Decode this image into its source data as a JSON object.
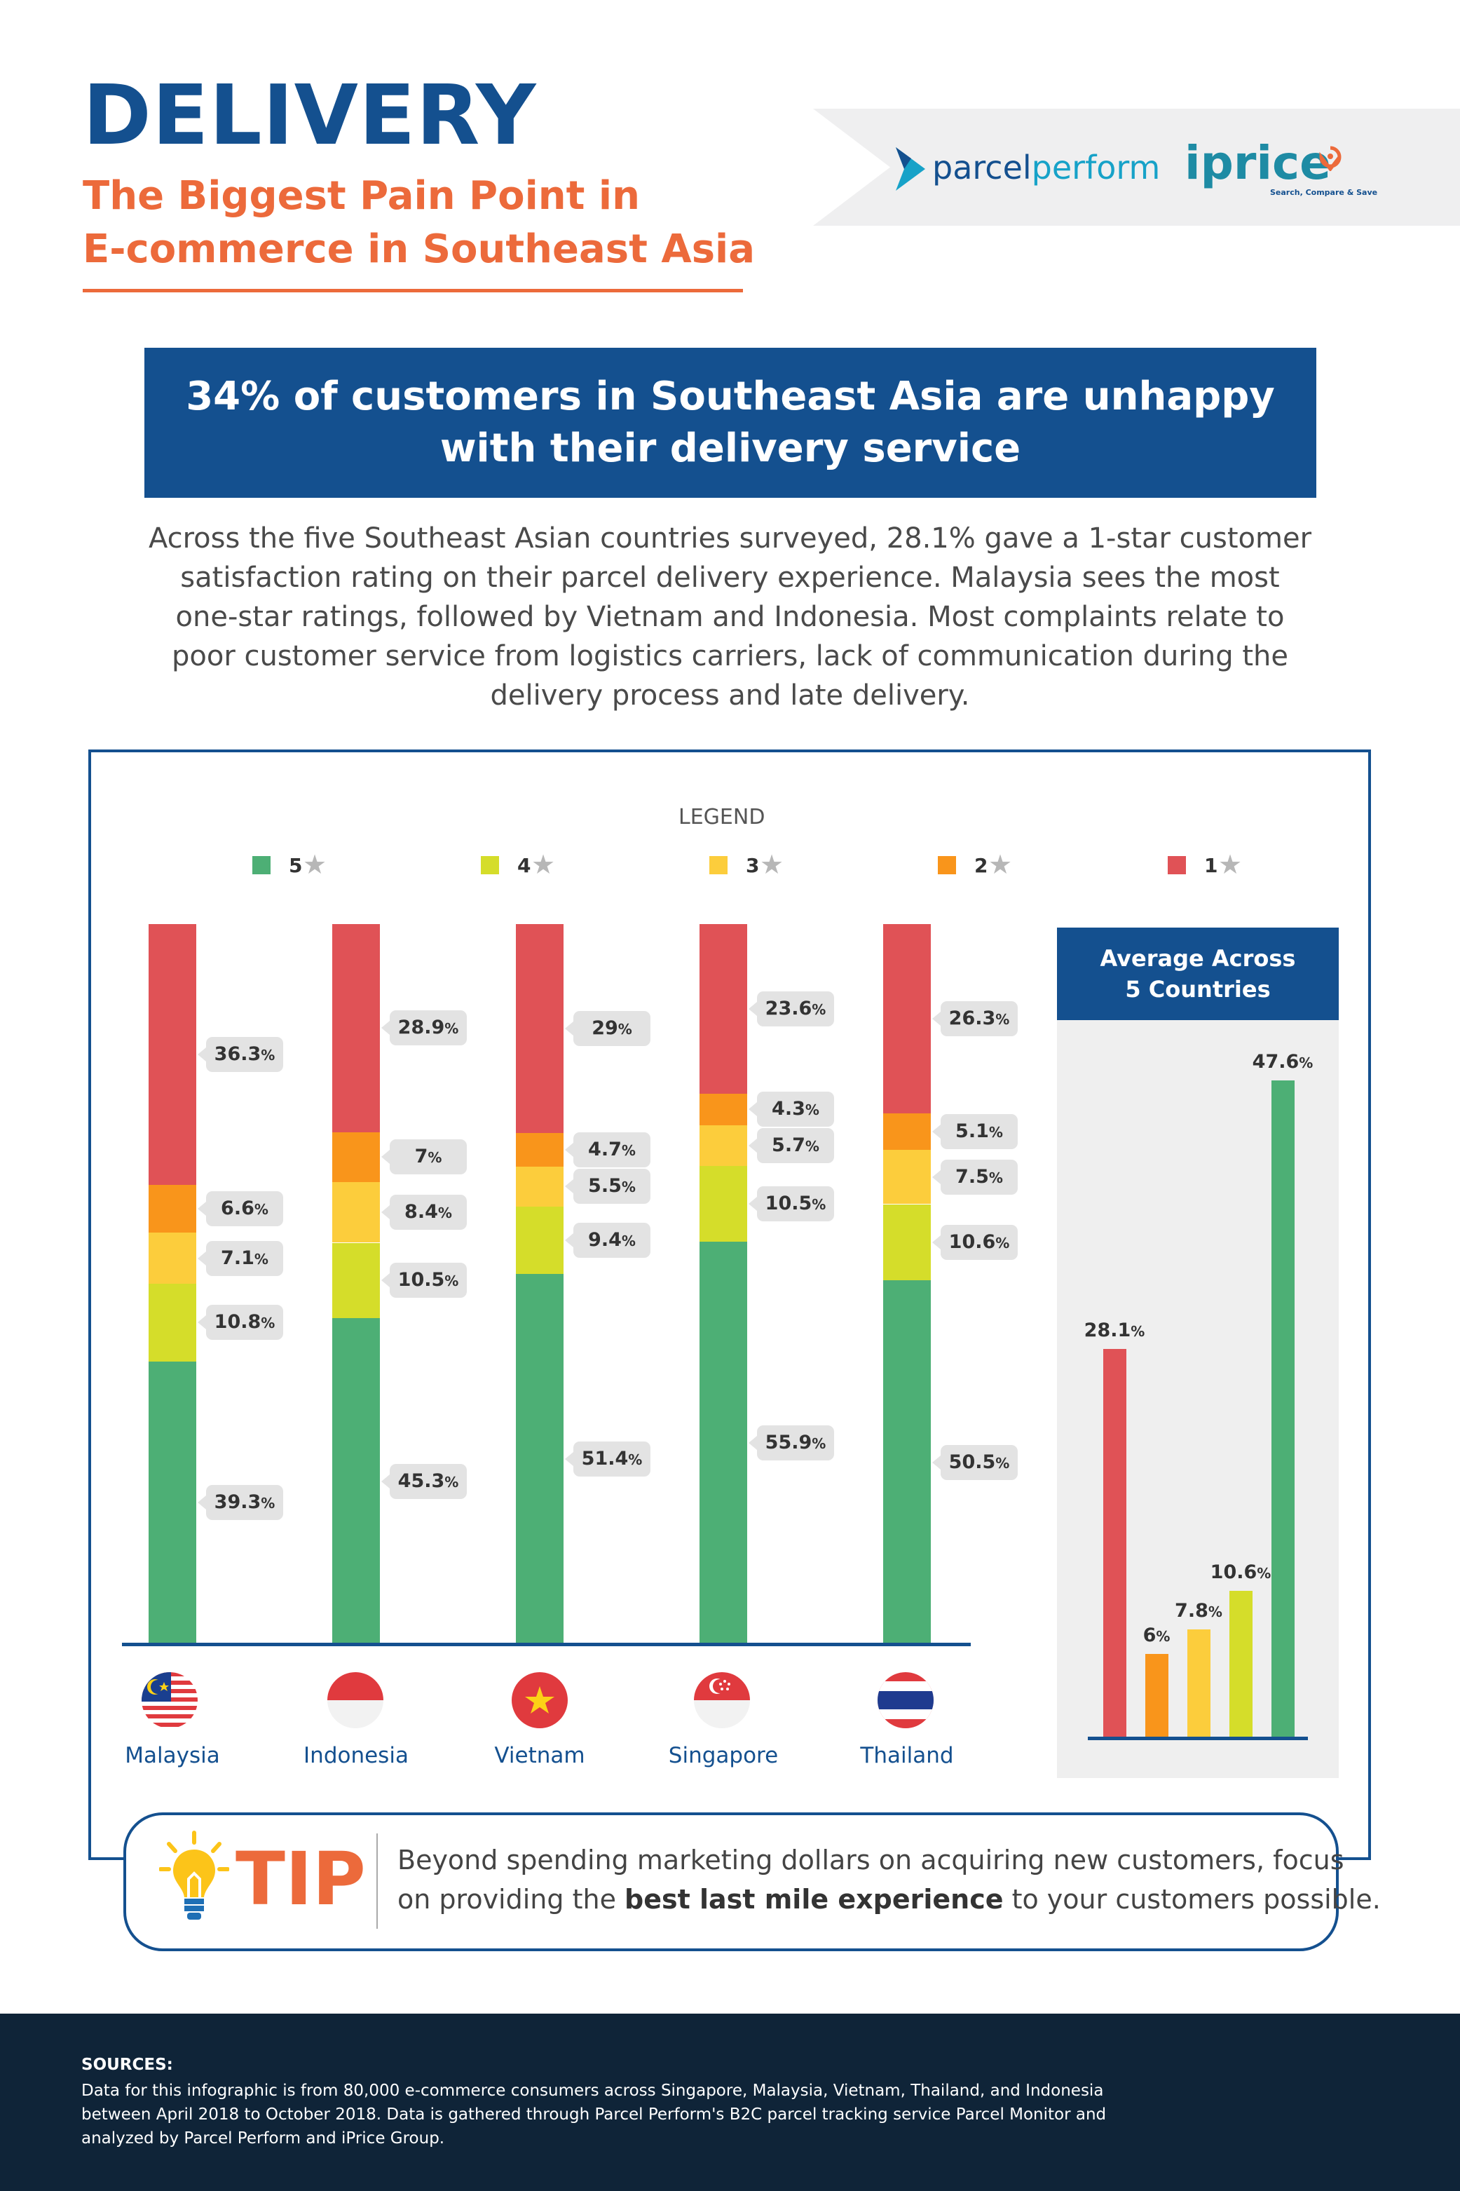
{
  "header": {
    "title": "DELIVERY",
    "subtitle_line1": "The Biggest Pain Point in",
    "subtitle_line2": "E-commerce in Southeast Asia",
    "logo_parcelperform_a": "parcel",
    "logo_parcelperform_b": "perform",
    "logo_iprice": "iprice",
    "logo_iprice_tagline": "Search, Compare & Save"
  },
  "banner": {
    "line1": "34% of customers in Southeast Asia are unhappy",
    "line2": "with their delivery service"
  },
  "intro": {
    "line1": "Across the five Southeast Asian countries surveyed, 28.1% gave a 1-star customer",
    "line2": "satisfaction rating on their parcel delivery experience. Malaysia sees the most",
    "line3": "one-star ratings, followed by Vietnam and Indonesia. Most complaints relate to",
    "line4": "poor customer service from logistics carriers, lack of communication during the",
    "line5": "delivery process and late delivery."
  },
  "legend": {
    "title": "LEGEND",
    "items": [
      {
        "label": "5",
        "color": "#4daf75"
      },
      {
        "label": "4",
        "color": "#d5dd2a"
      },
      {
        "label": "3",
        "color": "#fccd3c"
      },
      {
        "label": "2",
        "color": "#f9951b"
      },
      {
        "label": "1",
        "color": "#e05256"
      }
    ],
    "star_glyph": "★"
  },
  "chart_data": [
    {
      "type": "bar",
      "stacked": true,
      "percent_suffix": "%",
      "categories": [
        "Malaysia",
        "Indonesia",
        "Vietnam",
        "Singapore",
        "Thailand"
      ],
      "series": [
        {
          "name": "5",
          "color": "#4daf75",
          "values": [
            39.3,
            45.3,
            51.4,
            55.9,
            50.5
          ]
        },
        {
          "name": "4",
          "color": "#d5dd2a",
          "values": [
            10.8,
            10.5,
            9.4,
            10.5,
            10.6
          ]
        },
        {
          "name": "3",
          "color": "#fccd3c",
          "values": [
            7.1,
            8.4,
            5.5,
            5.7,
            7.5
          ]
        },
        {
          "name": "2",
          "color": "#f9951b",
          "values": [
            6.6,
            7,
            4.7,
            4.3,
            5.1
          ]
        },
        {
          "name": "1",
          "color": "#e05256",
          "values": [
            36.3,
            28.9,
            29,
            23.6,
            26.3
          ]
        }
      ],
      "legend_position": "top"
    },
    {
      "type": "bar",
      "title_line1": "Average Across",
      "title_line2": "5 Countries",
      "percent_suffix": "%",
      "categories": [
        "1",
        "2",
        "3",
        "4",
        "5"
      ],
      "values": [
        28.1,
        6,
        7.8,
        10.6,
        47.6
      ],
      "colors": [
        "#e05256",
        "#f9951b",
        "#fccd3c",
        "#d5dd2a",
        "#4daf75"
      ]
    }
  ],
  "tip": {
    "word": "TIP",
    "line1": "Beyond spending marketing dollars on acquiring new customers, focus",
    "line2_pre": "on providing the ",
    "line2_bold": "best last mile experience",
    "line2_post": " to your customers possible."
  },
  "sources": {
    "heading": "SOURCES:",
    "line1": "Data for this infographic is from 80,000 e-commerce consumers across Singapore, Malaysia, Vietnam, Thailand, and Indonesia",
    "line2": "between April 2018 to October 2018. Data is gathered through Parcel Perform's B2C parcel tracking service Parcel Monitor and",
    "line3": "analyzed by Parcel Perform and iPrice Group."
  }
}
